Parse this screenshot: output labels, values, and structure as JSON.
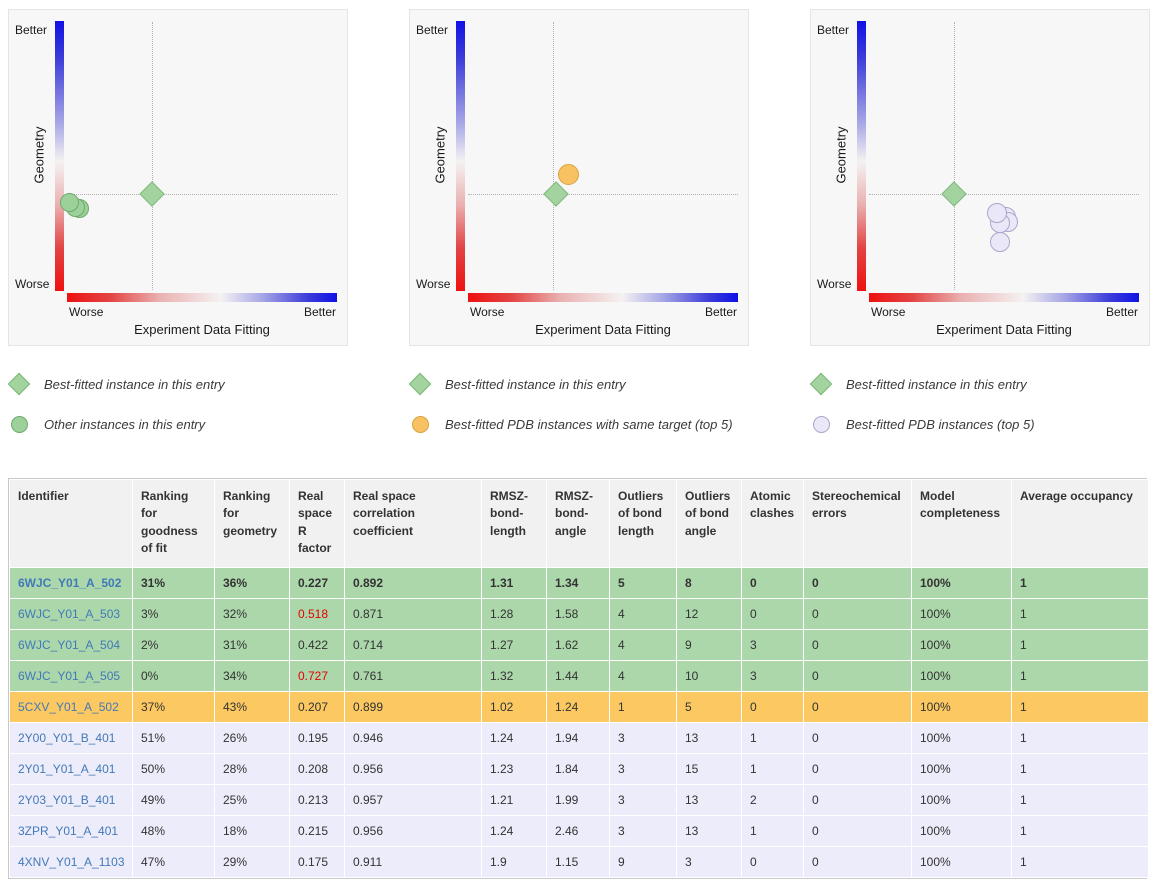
{
  "colors": {
    "row_green": "#abd7ab",
    "row_orange": "#fbc862",
    "row_lavender": "#edecfa",
    "link": "#4279b8",
    "red_value": "#e60000",
    "best_diamond_fill": "#a3d39f",
    "best_diamond_stroke": "#7fb87d"
  },
  "chart_data": [
    {
      "type": "scatter",
      "xlabel": "Experiment Data Fitting",
      "ylabel": "Geometry",
      "x_left": "Worse",
      "x_right": "Better",
      "y_top": "Better",
      "y_bottom": "Worse",
      "series": [
        {
          "name": "Best-fitted instance in this entry",
          "shape": "diamond",
          "fill": "#a3d39f",
          "stroke": "#7fb87d",
          "size": 18,
          "points": [
            {
              "x": 143,
              "y": 184
            }
          ]
        },
        {
          "name": "Other instances in this entry",
          "shape": "circle",
          "fill": "#9cd199",
          "stroke": "#6fa96d",
          "size": 19,
          "points": [
            {
              "x": 70,
              "y": 198
            },
            {
              "x": 66,
              "y": 197
            },
            {
              "x": 60,
              "y": 192
            }
          ]
        }
      ]
    },
    {
      "type": "scatter",
      "xlabel": "Experiment Data Fitting",
      "ylabel": "Geometry",
      "x_left": "Worse",
      "x_right": "Better",
      "y_top": "Better",
      "y_bottom": "Worse",
      "series": [
        {
          "name": "Best-fitted instance in this entry",
          "shape": "diamond",
          "fill": "#a3d39f",
          "stroke": "#7fb87d",
          "size": 18,
          "points": [
            {
              "x": 146,
              "y": 184
            }
          ]
        },
        {
          "name": "Best-fitted PDB instances with same target (top 5)",
          "shape": "circle",
          "fill": "#f8c263",
          "stroke": "#d7a443",
          "size": 21,
          "points": [
            {
              "x": 158,
              "y": 164
            }
          ]
        }
      ]
    },
    {
      "type": "scatter",
      "xlabel": "Experiment Data Fitting",
      "ylabel": "Geometry",
      "x_left": "Worse",
      "x_right": "Better",
      "y_top": "Better",
      "y_bottom": "Worse",
      "series": [
        {
          "name": "Best-fitted instance in this entry",
          "shape": "diamond",
          "fill": "#a3d39f",
          "stroke": "#7fb87d",
          "size": 18,
          "points": [
            {
              "x": 143,
              "y": 184
            }
          ]
        },
        {
          "name": "Best-fitted PDB instances (top 5)",
          "shape": "circle",
          "fill": "#e9e7f8",
          "stroke": "#a8a8c9",
          "size": 20,
          "points": [
            {
              "x": 195,
              "y": 207
            },
            {
              "x": 197,
              "y": 212
            },
            {
              "x": 189,
              "y": 213
            },
            {
              "x": 186,
              "y": 203
            },
            {
              "x": 189,
              "y": 232
            }
          ]
        }
      ]
    }
  ],
  "legends": [
    {
      "items": [
        {
          "shape": "diamond",
          "fill": "#a3d39f",
          "stroke": "#7fb87d",
          "label": "Best-fitted instance in this entry"
        },
        {
          "shape": "circle",
          "fill": "#9cd199",
          "stroke": "#6fa96d",
          "label": "Other instances in this entry"
        }
      ]
    },
    {
      "items": [
        {
          "shape": "diamond",
          "fill": "#a3d39f",
          "stroke": "#7fb87d",
          "label": "Best-fitted instance in this entry"
        },
        {
          "shape": "circle",
          "fill": "#f8c263",
          "stroke": "#d7a443",
          "label": "Best-fitted PDB instances with same target (top 5)"
        }
      ]
    },
    {
      "items": [
        {
          "shape": "diamond",
          "fill": "#a3d39f",
          "stroke": "#7fb87d",
          "label": "Best-fitted instance in this entry"
        },
        {
          "shape": "circle",
          "fill": "#e9e7f8",
          "stroke": "#a8a8c9",
          "label": "Best-fitted PDB instances (top 5)"
        }
      ]
    }
  ],
  "table": {
    "columns": [
      "Identifier",
      "Ranking for goodness of fit",
      "Ranking for geometry",
      "Real space R factor",
      "Real space correlation coefficient",
      "RMSZ-bond-length",
      "RMSZ-bond-angle",
      "Outliers of bond length",
      "Outliers of bond angle",
      "Atomic clashes",
      "Stereochemical errors",
      "Model completeness",
      "Average occupancy"
    ],
    "rows": [
      {
        "identifier": "6WJC_Y01_A_502",
        "cells": [
          "31%",
          "36%",
          "0.227",
          "0.892",
          "1.31",
          "1.34",
          "5",
          "8",
          "0",
          "0",
          "100%",
          "1"
        ],
        "style": "green",
        "bold": true,
        "red": []
      },
      {
        "identifier": "6WJC_Y01_A_503",
        "cells": [
          "3%",
          "32%",
          "0.518",
          "0.871",
          "1.28",
          "1.58",
          "4",
          "12",
          "0",
          "0",
          "100%",
          "1"
        ],
        "style": "green",
        "bold": false,
        "red": [
          2
        ]
      },
      {
        "identifier": "6WJC_Y01_A_504",
        "cells": [
          "2%",
          "31%",
          "0.422",
          "0.714",
          "1.27",
          "1.62",
          "4",
          "9",
          "3",
          "0",
          "100%",
          "1"
        ],
        "style": "green",
        "bold": false,
        "red": []
      },
      {
        "identifier": "6WJC_Y01_A_505",
        "cells": [
          "0%",
          "34%",
          "0.727",
          "0.761",
          "1.32",
          "1.44",
          "4",
          "10",
          "3",
          "0",
          "100%",
          "1"
        ],
        "style": "green",
        "bold": false,
        "red": [
          2
        ]
      },
      {
        "identifier": "5CXV_Y01_A_502",
        "cells": [
          "37%",
          "43%",
          "0.207",
          "0.899",
          "1.02",
          "1.24",
          "1",
          "5",
          "0",
          "0",
          "100%",
          "1"
        ],
        "style": "orange",
        "bold": false,
        "red": []
      },
      {
        "identifier": "2Y00_Y01_B_401",
        "cells": [
          "51%",
          "26%",
          "0.195",
          "0.946",
          "1.24",
          "1.94",
          "3",
          "13",
          "1",
          "0",
          "100%",
          "1"
        ],
        "style": "lavender",
        "bold": false,
        "red": []
      },
      {
        "identifier": "2Y01_Y01_A_401",
        "cells": [
          "50%",
          "28%",
          "0.208",
          "0.956",
          "1.23",
          "1.84",
          "3",
          "15",
          "1",
          "0",
          "100%",
          "1"
        ],
        "style": "lavender",
        "bold": false,
        "red": []
      },
      {
        "identifier": "2Y03_Y01_B_401",
        "cells": [
          "49%",
          "25%",
          "0.213",
          "0.957",
          "1.21",
          "1.99",
          "3",
          "13",
          "2",
          "0",
          "100%",
          "1"
        ],
        "style": "lavender",
        "bold": false,
        "red": []
      },
      {
        "identifier": "3ZPR_Y01_A_401",
        "cells": [
          "48%",
          "18%",
          "0.215",
          "0.956",
          "1.24",
          "2.46",
          "3",
          "13",
          "1",
          "0",
          "100%",
          "1"
        ],
        "style": "lavender",
        "bold": false,
        "red": []
      },
      {
        "identifier": "4XNV_Y01_A_1103",
        "cells": [
          "47%",
          "29%",
          "0.175",
          "0.911",
          "1.9",
          "1.15",
          "9",
          "3",
          "0",
          "0",
          "100%",
          "1"
        ],
        "style": "lavender",
        "bold": false,
        "red": []
      }
    ]
  }
}
